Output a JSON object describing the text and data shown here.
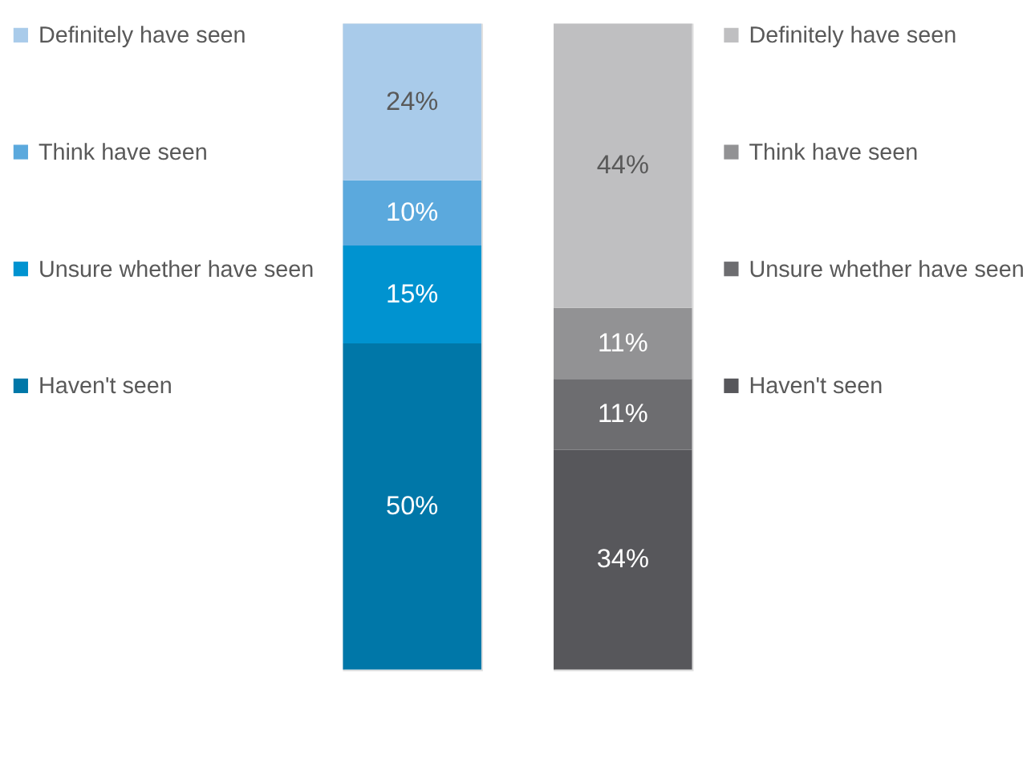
{
  "chart_data": [
    {
      "type": "bar",
      "stacked": true,
      "categories": [
        null
      ],
      "legend": "left",
      "series": [
        {
          "name": "Haven't seen",
          "color": "#0077a8",
          "values": [
            50
          ],
          "value_labels": [
            "50%"
          ]
        },
        {
          "name": "Unsure whether have seen",
          "color": "#0093d0",
          "values": [
            15
          ],
          "value_labels": [
            "15%"
          ]
        },
        {
          "name": "Think have seen",
          "color": "#5ba9dd",
          "values": [
            10
          ],
          "value_labels": [
            "10%"
          ]
        },
        {
          "name": "Definitely have seen",
          "color": "#a9cbea",
          "values": [
            24
          ],
          "value_labels": [
            "24%"
          ]
        }
      ]
    },
    {
      "type": "bar",
      "stacked": true,
      "categories": [
        null
      ],
      "legend": "right",
      "series": [
        {
          "name": "Haven't seen",
          "color": "#57575b",
          "values": [
            34
          ],
          "value_labels": [
            "34%"
          ]
        },
        {
          "name": "Unsure whether have seen",
          "color": "#6d6d70",
          "values": [
            11
          ],
          "value_labels": [
            "11%"
          ]
        },
        {
          "name": "Think have seen",
          "color": "#929294",
          "values": [
            11
          ],
          "value_labels": [
            "11%"
          ]
        },
        {
          "name": "Definitely have seen",
          "color": "#bfbfc1",
          "values": [
            44
          ],
          "value_labels": [
            "44%"
          ]
        }
      ]
    }
  ]
}
